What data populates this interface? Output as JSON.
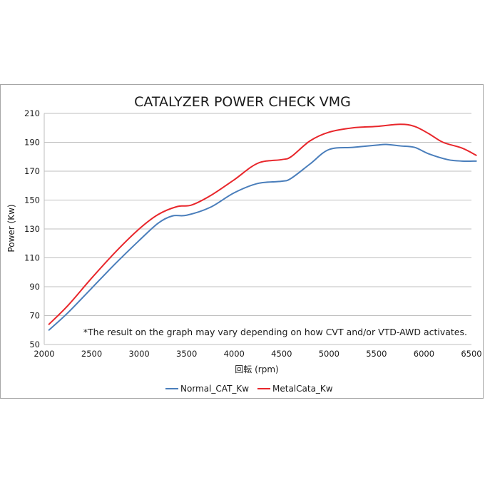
{
  "chart_data": {
    "type": "line",
    "title": "CATALYZER POWER CHECK VMG",
    "xlabel": "回転 (rpm)",
    "ylabel": "Power (Kw)",
    "xlim": [
      2000,
      6500
    ],
    "ylim": [
      50,
      210
    ],
    "xticks": [
      2000,
      2500,
      3000,
      3500,
      4000,
      4500,
      5000,
      5500,
      6000,
      6500
    ],
    "yticks": [
      50,
      70,
      90,
      110,
      130,
      150,
      170,
      190,
      210
    ],
    "grid": true,
    "legend_position": "bottom",
    "annotation": "*The result on the graph may vary depending on how CVT and/or VTD-AWD activates.",
    "series": [
      {
        "name": "Normal_CAT_Kw",
        "color": "#4a7ebb",
        "x": [
          2050,
          2250,
          2500,
          2750,
          3000,
          3200,
          3350,
          3500,
          3750,
          4000,
          4250,
          4500,
          4600,
          4800,
          5000,
          5250,
          5500,
          5600,
          5750,
          5900,
          6050,
          6250,
          6400,
          6550
        ],
        "y": [
          60,
          72,
          89,
          106,
          122,
          134,
          139,
          139.5,
          145,
          155,
          161.5,
          163,
          165,
          175,
          185,
          186.5,
          188,
          188.5,
          187.5,
          186.5,
          182,
          178,
          177,
          177
        ]
      },
      {
        "name": "MetalCata_Kw",
        "color": "#e8262b",
        "x": [
          2050,
          2250,
          2500,
          2750,
          3000,
          3200,
          3400,
          3550,
          3750,
          4000,
          4250,
          4500,
          4600,
          4800,
          5000,
          5250,
          5500,
          5750,
          5900,
          6050,
          6200,
          6400,
          6550
        ],
        "y": [
          64,
          77,
          96,
          114,
          130,
          140,
          145.5,
          146.5,
          153,
          164,
          175.5,
          178,
          180,
          191,
          197,
          200,
          201,
          202.5,
          201,
          196,
          190,
          186,
          181
        ]
      }
    ]
  }
}
